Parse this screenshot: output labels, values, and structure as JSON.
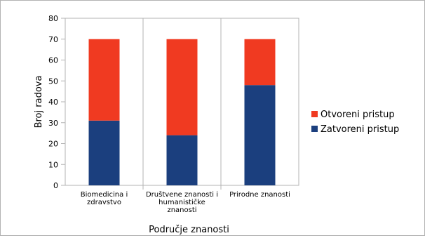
{
  "chart_data": {
    "type": "bar",
    "stacked": true,
    "categories": [
      [
        "Biomedicina i",
        "zdravstvo"
      ],
      [
        "Društvene znanosti i",
        "humanističke",
        "znanosti"
      ],
      [
        "Prirodne znanosti"
      ]
    ],
    "series": [
      {
        "name": "Zatvoreni pristup",
        "color": "#1b3f7e",
        "values": [
          31,
          24,
          48
        ]
      },
      {
        "name": "Otvoreni pristup",
        "color": "#f03a21",
        "values": [
          39,
          46,
          22
        ]
      }
    ],
    "legend_order": [
      1,
      0
    ],
    "legend_position": "right",
    "title": "",
    "xlabel": "Područje znanosti",
    "ylabel": "Broj radova",
    "ylim": [
      0,
      80
    ],
    "yticks": [
      0,
      10,
      20,
      30,
      40,
      50,
      60,
      70,
      80
    ],
    "grid": {
      "horizontal": false,
      "category_separators": true
    },
    "colors": {
      "axis": "#b3b3b3",
      "frame": "#b3b3b3"
    }
  }
}
